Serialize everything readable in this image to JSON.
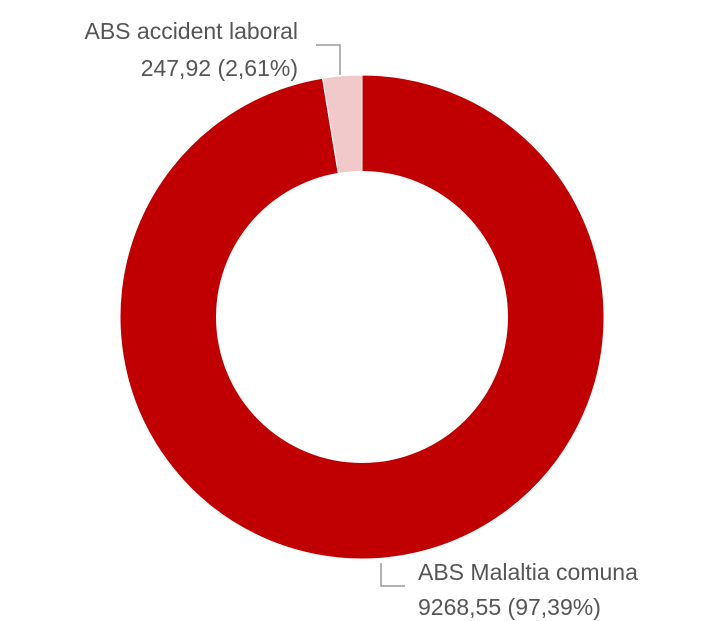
{
  "chart_data": {
    "type": "pie",
    "variant": "donut",
    "title": "",
    "slices": [
      {
        "label": "ABS Malaltia comuna",
        "value": 9268.55,
        "value_text": "9268,55",
        "percent": 97.39,
        "percent_text": "97,39%",
        "color": "#c00000"
      },
      {
        "label": "ABS accident laboral",
        "value": 247.92,
        "value_text": "247,92",
        "percent": 2.61,
        "percent_text": "2,61%",
        "color": "#f1c9ca"
      }
    ],
    "legend": false
  }
}
